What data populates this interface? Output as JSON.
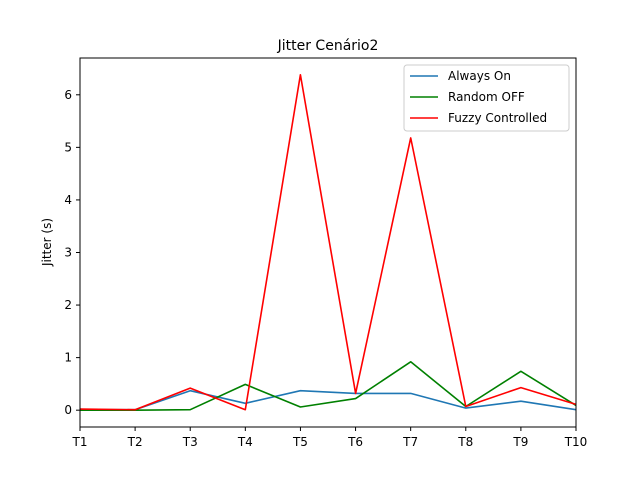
{
  "chart_data": {
    "type": "line",
    "title": "Jitter Cenário2",
    "xlabel": "",
    "ylabel": "Jitter (s)",
    "categories": [
      "T1",
      "T2",
      "T3",
      "T4",
      "T5",
      "T6",
      "T7",
      "T8",
      "T9",
      "T10"
    ],
    "y_ticks": [
      0,
      1,
      2,
      3,
      4,
      5,
      6
    ],
    "ylim": [
      -0.32,
      6.7
    ],
    "grid": false,
    "legend_position": "top-right",
    "series": [
      {
        "name": "Always On",
        "color": "#1f77b4",
        "values": [
          0.01,
          0.01,
          0.37,
          0.13,
          0.37,
          0.32,
          0.32,
          0.04,
          0.17,
          0.01
        ]
      },
      {
        "name": "Random OFF",
        "color": "#008000",
        "values": [
          0.0,
          0.0,
          0.01,
          0.49,
          0.06,
          0.22,
          0.92,
          0.07,
          0.74,
          0.09
        ]
      },
      {
        "name": "Fuzzy Controlled",
        "color": "#ff0000",
        "values": [
          0.02,
          0.01,
          0.42,
          0.01,
          6.38,
          0.32,
          5.18,
          0.07,
          0.43,
          0.11
        ]
      }
    ]
  }
}
